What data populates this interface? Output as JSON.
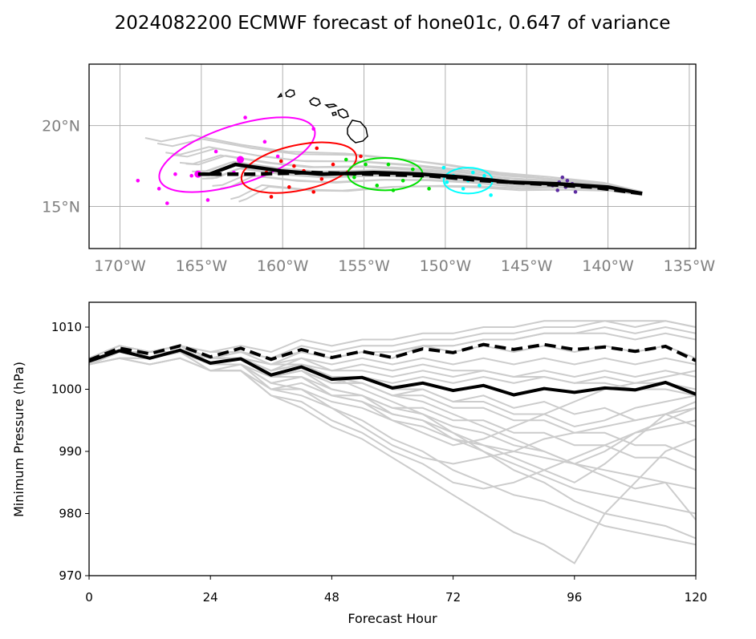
{
  "title": "2024082200 ECMWF forecast of hone01c, 0.647 of variance",
  "colors": {
    "member": "#cccccc",
    "mean": "#000000",
    "ellipse_day1": "#ff00ff",
    "ellipse_day2": "#ff0000",
    "ellipse_day3": "#00e000",
    "ellipse_day4": "#00ffff",
    "ellipse_day5": "#5b2aa0",
    "grid": "#b0b0b0",
    "map_tick": "#808080"
  },
  "chart_data": [
    {
      "type": "map-track",
      "x_ticks": [
        -170,
        -165,
        -160,
        -155,
        -150,
        -145,
        -140,
        -135
      ],
      "x_tick_labels": [
        "170°W",
        "165°W",
        "160°W",
        "155°W",
        "150°W",
        "145°W",
        "140°W",
        "135°W"
      ],
      "y_ticks": [
        15,
        20
      ],
      "y_tick_labels": [
        "15°N",
        "20°N"
      ],
      "xlim": [
        -171.9,
        -134.6
      ],
      "ylim": [
        12.4,
        23.8
      ],
      "mean_track": [
        [
          -137.9,
          15.8
        ],
        [
          -140.0,
          16.2
        ],
        [
          -143.1,
          16.4
        ],
        [
          -146.0,
          16.5
        ],
        [
          -148.7,
          16.8
        ],
        [
          -151.5,
          17.0
        ],
        [
          -154.4,
          17.1
        ],
        [
          -157.6,
          17.0
        ],
        [
          -160.1,
          17.2
        ],
        [
          -162.9,
          17.6
        ],
        [
          -164.5,
          17.0
        ],
        [
          -165.2,
          17.0
        ]
      ],
      "mean_track_dashed": [
        [
          -137.9,
          15.8
        ],
        [
          -141.0,
          16.2
        ],
        [
          -144.4,
          16.4
        ],
        [
          -147.7,
          16.6
        ],
        [
          -151.0,
          16.9
        ],
        [
          -154.6,
          17.0
        ],
        [
          -158.2,
          17.1
        ],
        [
          -161.8,
          17.0
        ],
        [
          -164.6,
          17.0
        ]
      ],
      "ellipses": [
        {
          "name": "day1",
          "color": "#ff00ff",
          "center": [
            -162.8,
            18.2
          ],
          "rx_deg": 5.0,
          "ry_deg": 1.8,
          "angle_deg": -18
        },
        {
          "name": "day2",
          "color": "#ff0000",
          "center": [
            -159.0,
            17.4
          ],
          "rx_deg": 3.6,
          "ry_deg": 1.4,
          "angle_deg": -12
        },
        {
          "name": "day3",
          "color": "#00e000",
          "center": [
            -153.7,
            17.0
          ],
          "rx_deg": 2.3,
          "ry_deg": 1.0,
          "angle_deg": 0
        },
        {
          "name": "day4",
          "color": "#00ffff",
          "center": [
            -148.6,
            16.6
          ],
          "rx_deg": 1.5,
          "ry_deg": 0.8,
          "angle_deg": 0
        }
      ],
      "scatter_points": [
        {
          "color": "#5b2aa0",
          "points": [
            [
              -143.0,
              16.5
            ],
            [
              -142.6,
              16.2
            ],
            [
              -142.2,
              16.4
            ],
            [
              -142.8,
              16.8
            ],
            [
              -143.4,
              16.3
            ],
            [
              -142.0,
              15.9
            ],
            [
              -142.5,
              16.6
            ],
            [
              -143.1,
              16.0
            ]
          ]
        },
        {
          "color": "#00ffff",
          "points": [
            [
              -148.6,
              16.6
            ],
            [
              -149.5,
              16.9
            ],
            [
              -147.9,
              16.3
            ],
            [
              -148.3,
              17.1
            ],
            [
              -149.9,
              16.5
            ],
            [
              -147.6,
              16.9
            ],
            [
              -148.9,
              16.1
            ],
            [
              -150.1,
              17.4
            ],
            [
              -147.2,
              15.7
            ]
          ]
        },
        {
          "color": "#00e000",
          "points": [
            [
              -153.7,
              17.0
            ],
            [
              -154.9,
              17.6
            ],
            [
              -152.6,
              16.6
            ],
            [
              -153.2,
              16.0
            ],
            [
              -155.6,
              16.8
            ],
            [
              -152.0,
              17.3
            ],
            [
              -154.2,
              16.3
            ],
            [
              -156.1,
              17.9
            ],
            [
              -151.0,
              16.1
            ],
            [
              -153.5,
              17.6
            ]
          ]
        },
        {
          "color": "#ff0000",
          "points": [
            [
              -158.7,
              17.2
            ],
            [
              -160.1,
              17.8
            ],
            [
              -157.6,
              16.7
            ],
            [
              -159.6,
              16.2
            ],
            [
              -161.0,
              17.1
            ],
            [
              -156.9,
              17.6
            ],
            [
              -158.1,
              15.9
            ],
            [
              -160.7,
              15.6
            ],
            [
              -155.2,
              18.1
            ],
            [
              -157.9,
              18.6
            ],
            [
              -159.3,
              17.5
            ]
          ]
        },
        {
          "color": "#ff00ff",
          "points": [
            [
              -162.6,
              17.9
            ],
            [
              -164.1,
              18.4
            ],
            [
              -161.1,
              19.0
            ],
            [
              -165.6,
              16.9
            ],
            [
              -163.0,
              17.1
            ],
            [
              -160.3,
              18.1
            ],
            [
              -166.6,
              17.0
            ],
            [
              -167.6,
              16.1
            ],
            [
              -168.9,
              16.6
            ],
            [
              -162.3,
              20.5
            ],
            [
              -164.6,
              15.4
            ],
            [
              -167.1,
              15.2
            ],
            [
              -158.1,
              19.8
            ]
          ]
        }
      ],
      "land_outlines": true
    },
    {
      "type": "line",
      "x_ticks": [
        0,
        24,
        48,
        72,
        96,
        120
      ],
      "y_ticks": [
        970,
        980,
        990,
        1000,
        1010
      ],
      "xlim": [
        0,
        120
      ],
      "ylim": [
        970,
        1014
      ],
      "xlabel": "Forecast Hour",
      "ylabel": "Minimum Pressure (hPa)",
      "x": [
        0,
        6,
        12,
        18,
        24,
        30,
        36,
        42,
        48,
        54,
        60,
        66,
        72,
        78,
        84,
        90,
        96,
        102,
        108,
        114,
        120
      ],
      "mean_solid": [
        1004.5,
        1006.2,
        1005.0,
        1006.3,
        1004.2,
        1004.9,
        1002.3,
        1003.6,
        1001.6,
        1001.9,
        1000.2,
        1001.0,
        999.8,
        1000.6,
        999.1,
        1000.1,
        999.5,
        1000.2,
        999.9,
        1001.1,
        999.2
      ],
      "mean_dashed": [
        1004.7,
        1006.6,
        1005.7,
        1007.0,
        1005.2,
        1006.6,
        1004.8,
        1006.4,
        1005.1,
        1006.1,
        1005.1,
        1006.5,
        1005.9,
        1007.2,
        1006.4,
        1007.2,
        1006.4,
        1006.8,
        1006.1,
        1006.9,
        1004.6
      ],
      "members": [
        [
          1005,
          1007,
          1006,
          1007,
          1005,
          1006,
          1005,
          1006,
          1005,
          1006,
          1005,
          1007,
          1006,
          1007,
          1006,
          1007,
          1006,
          1007,
          1006,
          1007,
          1005
        ],
        [
          1004,
          1006,
          1005,
          1006,
          1004,
          1005,
          1002,
          1003,
          1001,
          1001,
          999,
          1000,
          998,
          999,
          997,
          998,
          996,
          997,
          995,
          996,
          994
        ],
        [
          1005,
          1006,
          1006,
          1007,
          1005,
          1005,
          1003,
          1004,
          1002,
          1000,
          998,
          996,
          993,
          990,
          988,
          986,
          984,
          983,
          982,
          981,
          980
        ],
        [
          1004,
          1005,
          1005,
          1006,
          1004,
          1004,
          1000,
          999,
          997,
          995,
          992,
          990,
          987,
          985,
          983,
          982,
          980,
          978,
          977,
          976,
          975
        ],
        [
          1005,
          1006,
          1005,
          1006,
          1003,
          1003,
          999,
          997,
          994,
          992,
          989,
          986,
          983,
          980,
          977,
          975,
          972,
          980,
          985,
          990,
          992
        ],
        [
          1005,
          1007,
          1006,
          1007,
          1006,
          1007,
          1006,
          1008,
          1007,
          1008,
          1008,
          1009,
          1009,
          1010,
          1010,
          1011,
          1011,
          1011,
          1010,
          1011,
          1010
        ],
        [
          1004,
          1006,
          1005,
          1006,
          1004,
          1005,
          1003,
          1005,
          1003,
          1004,
          1003,
          1004,
          1003,
          1003,
          1002,
          1002,
          1001,
          1001,
          1000,
          1000,
          999
        ],
        [
          1005,
          1007,
          1006,
          1007,
          1005,
          1006,
          1004,
          1004,
          1002,
          1001,
          999,
          998,
          996,
          994,
          992,
          990,
          988,
          986,
          984,
          985,
          979
        ],
        [
          1004,
          1005,
          1004,
          1005,
          1003,
          1003,
          1000,
          1001,
          999,
          998,
          996,
          995,
          993,
          991,
          989,
          987,
          985,
          988,
          992,
          996,
          998
        ],
        [
          1005,
          1006,
          1006,
          1006,
          1005,
          1005,
          1004,
          1005,
          1004,
          1005,
          1004,
          1005,
          1004,
          1005,
          1004,
          1005,
          1004,
          1005,
          1004,
          1005,
          1004
        ],
        [
          1004,
          1006,
          1005,
          1006,
          1004,
          1004,
          1001,
          1002,
          1000,
          999,
          997,
          996,
          994,
          993,
          991,
          990,
          988,
          990,
          993,
          995,
          997
        ],
        [
          1005,
          1007,
          1006,
          1007,
          1006,
          1006,
          1005,
          1006,
          1005,
          1006,
          1006,
          1007,
          1007,
          1008,
          1008,
          1009,
          1009,
          1010,
          1009,
          1010,
          1009
        ],
        [
          1004,
          1005,
          1004,
          1005,
          1003,
          1003,
          999,
          998,
          995,
          993,
          990,
          988,
          985,
          984,
          985,
          987,
          989,
          991,
          993,
          994,
          995
        ],
        [
          1005,
          1006,
          1005,
          1006,
          1004,
          1005,
          1002,
          1003,
          1000,
          999,
          997,
          997,
          995,
          995,
          993,
          993,
          991,
          991,
          989,
          989,
          987
        ],
        [
          1004,
          1006,
          1005,
          1006,
          1005,
          1005,
          1003,
          1004,
          1003,
          1003,
          1002,
          1003,
          1002,
          1003,
          1002,
          1003,
          1002,
          1003,
          1002,
          1003,
          1002
        ],
        [
          1005,
          1006,
          1006,
          1007,
          1004,
          1004,
          1001,
          1000,
          997,
          994,
          991,
          989,
          988,
          989,
          990,
          992,
          993,
          994,
          995,
          996,
          997
        ],
        [
          1004,
          1005,
          1005,
          1006,
          1003,
          1004,
          1001,
          1002,
          999,
          999,
          996,
          995,
          992,
          990,
          987,
          985,
          982,
          980,
          979,
          978,
          976
        ],
        [
          1005,
          1007,
          1006,
          1007,
          1005,
          1006,
          1005,
          1007,
          1006,
          1007,
          1007,
          1008,
          1008,
          1009,
          1009,
          1010,
          1010,
          1011,
          1011,
          1011,
          1010
        ],
        [
          1004,
          1006,
          1005,
          1006,
          1004,
          1005,
          1002,
          1002,
          999,
          998,
          995,
          993,
          991,
          992,
          994,
          996,
          998,
          1000,
          1001,
          1002,
          1003
        ],
        [
          1005,
          1006,
          1005,
          1006,
          1004,
          1004,
          1002,
          1003,
          1001,
          1002,
          1001,
          1002,
          1001,
          1002,
          1001,
          1002,
          1001,
          1002,
          1001,
          1001,
          1000
        ],
        [
          1004,
          1005,
          1004,
          1005,
          1003,
          1003,
          1000,
          1000,
          998,
          997,
          995,
          994,
          992,
          991,
          990,
          989,
          988,
          987,
          986,
          985,
          984
        ],
        [
          1005,
          1006,
          1006,
          1006,
          1005,
          1005,
          1004,
          1006,
          1005,
          1006,
          1006,
          1007,
          1007,
          1008,
          1008,
          1009,
          1009,
          1009,
          1008,
          1009,
          1008
        ],
        [
          1004,
          1006,
          1005,
          1006,
          1004,
          1004,
          1002,
          1003,
          1001,
          1001,
          999,
          999,
          997,
          997,
          995,
          995,
          993,
          993,
          991,
          991,
          989
        ],
        [
          1005,
          1006,
          1005,
          1006,
          1004,
          1005,
          1003,
          1004,
          1002,
          1002,
          1000,
          1000,
          998,
          998,
          996,
          996,
          994,
          995,
          997,
          998,
          999
        ]
      ]
    }
  ]
}
